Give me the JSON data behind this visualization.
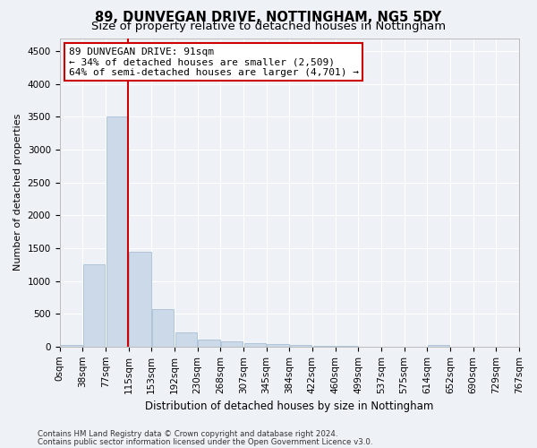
{
  "title": "89, DUNVEGAN DRIVE, NOTTINGHAM, NG5 5DY",
  "subtitle": "Size of property relative to detached houses in Nottingham",
  "xlabel": "Distribution of detached houses by size in Nottingham",
  "ylabel": "Number of detached properties",
  "footer_line1": "Contains HM Land Registry data © Crown copyright and database right 2024.",
  "footer_line2": "Contains public sector information licensed under the Open Government Licence v3.0.",
  "bar_color": "#ccd9e8",
  "bar_edge_color": "#a8bfd4",
  "highlight_color": "#cc0000",
  "annotation_line1": "89 DUNVEGAN DRIVE: 91sqm",
  "annotation_line2": "← 34% of detached houses are smaller (2,509)",
  "annotation_line3": "64% of semi-detached houses are larger (4,701) →",
  "annotation_box_color": "#ffffff",
  "annotation_box_edge": "#cc0000",
  "property_bin_index": 2,
  "bin_labels": [
    "0sqm",
    "38sqm",
    "77sqm",
    "115sqm",
    "153sqm",
    "192sqm",
    "230sqm",
    "268sqm",
    "307sqm",
    "345sqm",
    "384sqm",
    "422sqm",
    "460sqm",
    "499sqm",
    "537sqm",
    "575sqm",
    "614sqm",
    "652sqm",
    "690sqm",
    "729sqm",
    "767sqm"
  ],
  "bar_heights": [
    25,
    1250,
    3500,
    1450,
    570,
    220,
    110,
    75,
    55,
    35,
    25,
    10,
    5,
    0,
    0,
    0,
    30,
    0,
    0,
    0
  ],
  "ylim": [
    0,
    4700
  ],
  "yticks": [
    0,
    500,
    1000,
    1500,
    2000,
    2500,
    3000,
    3500,
    4000,
    4500
  ],
  "background_color": "#eef2f7",
  "plot_bg_color": "#eef2f7",
  "grid_color": "#ffffff",
  "title_fontsize": 10.5,
  "subtitle_fontsize": 9.5,
  "xlabel_fontsize": 8.5,
  "ylabel_fontsize": 8,
  "tick_fontsize": 7.5,
  "annotation_fontsize": 8
}
